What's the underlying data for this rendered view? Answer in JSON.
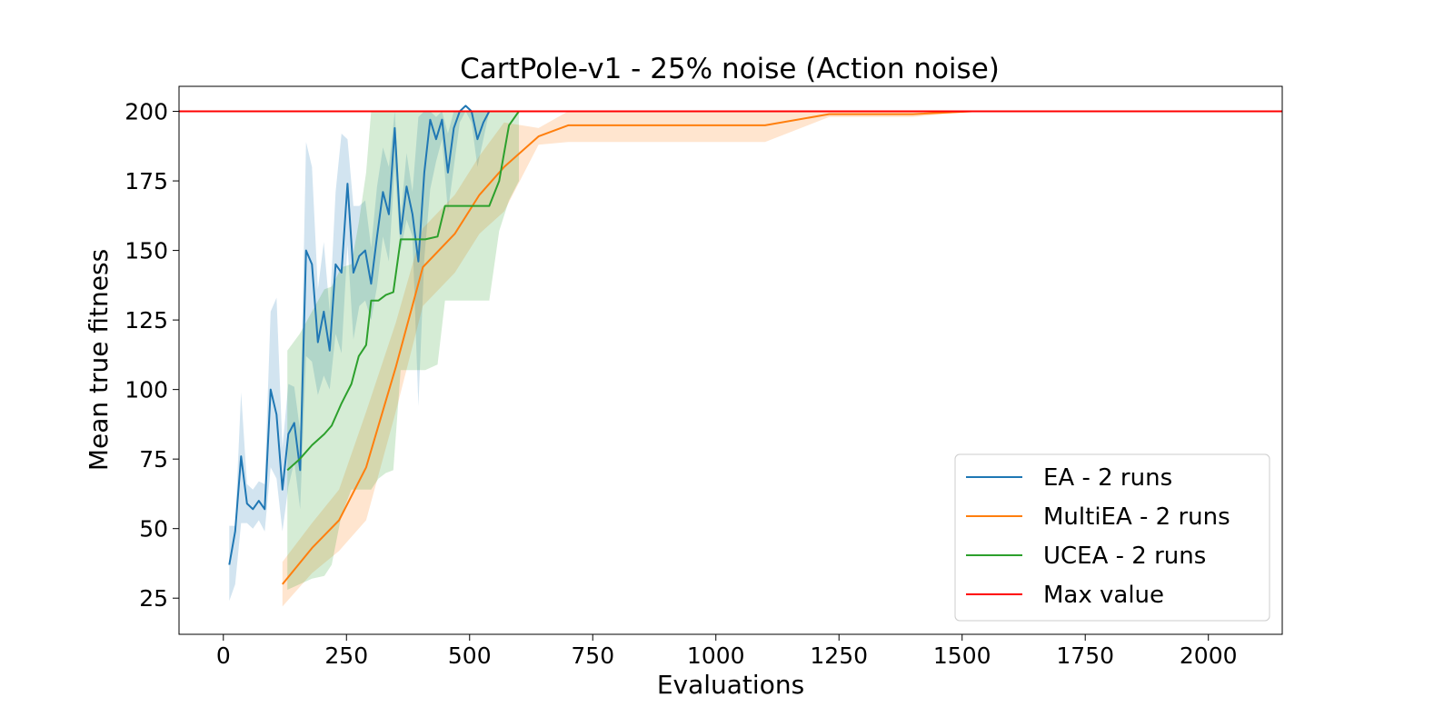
{
  "chart_data": {
    "type": "line",
    "title": "CartPole-v1 - 25% noise (Action noise)",
    "xlabel": "Evaluations",
    "ylabel": "Mean true fitness",
    "xlim": [
      -90,
      2150
    ],
    "ylim": [
      12,
      209
    ],
    "xticks": [
      0,
      250,
      500,
      750,
      1000,
      1250,
      1500,
      1750,
      2000
    ],
    "yticks": [
      25,
      50,
      75,
      100,
      125,
      150,
      175,
      200
    ],
    "grid": false,
    "legend_position": "lower-right",
    "series": [
      {
        "name": "EA - 2 runs",
        "color": "#1f77b4",
        "x": [
          12,
          24,
          36,
          48,
          60,
          72,
          84,
          96,
          108,
          120,
          132,
          144,
          156,
          168,
          180,
          192,
          204,
          216,
          228,
          240,
          252,
          264,
          276,
          288,
          300,
          312,
          324,
          336,
          348,
          360,
          372,
          384,
          396,
          408,
          420,
          432,
          444,
          456,
          468,
          480,
          492,
          504,
          516,
          528,
          540,
          552
        ],
        "y": [
          37,
          49,
          76,
          59,
          57,
          60,
          57,
          100,
          91,
          64,
          84,
          88,
          71,
          150,
          145,
          117,
          128,
          114,
          145,
          142,
          174,
          142,
          148,
          150,
          138,
          155,
          171,
          163,
          194,
          156,
          173,
          163,
          146,
          178,
          197,
          190,
          197,
          178,
          194,
          200,
          202,
          200,
          190,
          196,
          200,
          200
        ],
        "y_low": [
          24,
          30,
          52,
          52,
          50,
          53,
          49,
          72,
          68,
          49,
          65,
          74,
          57,
          112,
          110,
          98,
          105,
          100,
          120,
          113,
          152,
          118,
          130,
          132,
          125,
          137,
          155,
          146,
          180,
          150,
          161,
          155,
          94,
          147,
          172,
          182,
          190,
          164,
          180,
          196,
          200,
          196,
          180,
          190,
          200,
          200
        ],
        "y_high": [
          51,
          51,
          99,
          66,
          64,
          67,
          66,
          128,
          133,
          79,
          102,
          101,
          85,
          189,
          180,
          136,
          153,
          128,
          171,
          192,
          190,
          166,
          166,
          168,
          151,
          173,
          187,
          180,
          200,
          162,
          185,
          171,
          198,
          200,
          200,
          198,
          200,
          192,
          200,
          200,
          200,
          200,
          200,
          200,
          200,
          200
        ]
      },
      {
        "name": "MultiEA - 2 runs",
        "color": "#ff7f0e",
        "x": [
          120,
          180,
          235,
          290,
          350,
          405,
          470,
          520,
          570,
          640,
          700,
          760,
          1100,
          1230,
          1400,
          1520,
          2000
        ],
        "y": [
          30,
          43,
          53,
          72,
          108,
          144,
          156,
          170,
          180,
          191,
          195,
          195,
          195,
          199,
          199,
          200,
          200
        ],
        "y_low": [
          22,
          34,
          42,
          53,
          92,
          130,
          142,
          156,
          164,
          188,
          189,
          189,
          189,
          198,
          198,
          200,
          200
        ],
        "y_high": [
          38,
          52,
          64,
          92,
          124,
          158,
          170,
          184,
          196,
          194,
          200,
          200,
          200,
          200,
          200,
          200,
          200
        ]
      },
      {
        "name": "UCEA - 2 runs",
        "color": "#2ca02c",
        "x": [
          130,
          155,
          180,
          205,
          220,
          240,
          260,
          275,
          290,
          300,
          315,
          330,
          345,
          360,
          390,
          410,
          435,
          450,
          475,
          500,
          520,
          540,
          560,
          580,
          600
        ],
        "y": [
          71,
          75,
          80,
          84,
          87,
          95,
          102,
          112,
          116,
          132,
          132,
          134,
          135,
          154,
          154,
          154,
          155,
          166,
          166,
          166,
          166,
          166,
          175,
          195,
          200
        ],
        "y_low": [
          28,
          30,
          32,
          33,
          37,
          55,
          64,
          64,
          64,
          64,
          68,
          70,
          71,
          107,
          107,
          107,
          109,
          132,
          132,
          132,
          132,
          132,
          157,
          168,
          175
        ],
        "y_high": [
          114,
          120,
          128,
          136,
          137,
          144,
          145,
          160,
          178,
          200,
          200,
          200,
          200,
          200,
          200,
          200,
          200,
          200,
          200,
          200,
          200,
          200,
          200,
          200,
          200
        ]
      },
      {
        "name": "Max value",
        "color": "#ff0000",
        "x": [
          -90,
          2150
        ],
        "y": [
          200,
          200
        ]
      }
    ]
  }
}
